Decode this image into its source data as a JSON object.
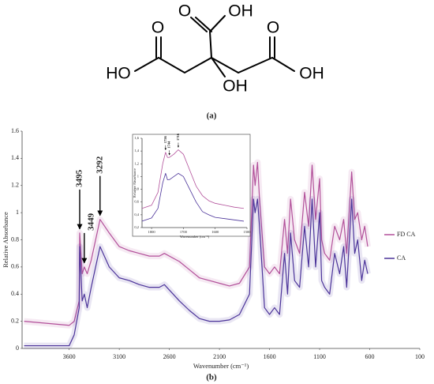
{
  "structure": {
    "labels": [
      "O",
      "OH",
      "O",
      "HO",
      "OH",
      "O",
      "OH"
    ],
    "caption": "(a)"
  },
  "chart_data": [
    {
      "type": "line",
      "caption": "(b)",
      "x_label": "Wavenumber (cm⁻¹)",
      "y_label": "Relative Absorbance",
      "xlim": [
        4070,
        100
      ],
      "xticks": [
        3600,
        3100,
        2600,
        2100,
        1600,
        1100,
        600,
        100
      ],
      "ylim": [
        0,
        1.6
      ],
      "yticks": [
        0,
        0.2,
        0.4,
        0.6,
        0.8,
        1,
        1.2,
        1.4,
        1.6
      ],
      "legend": "right",
      "x": [
        4050,
        3600,
        3550,
        3500,
        3495,
        3470,
        3449,
        3420,
        3380,
        3292,
        3200,
        3100,
        3000,
        2900,
        2800,
        2700,
        2650,
        2500,
        2400,
        2300,
        2200,
        2100,
        2000,
        1900,
        1800,
        1760,
        1744,
        1720,
        1700,
        1650,
        1600,
        1550,
        1500,
        1450,
        1420,
        1390,
        1350,
        1300,
        1250,
        1210,
        1175,
        1140,
        1100,
        1080,
        1050,
        1000,
        950,
        900,
        860,
        830,
        780,
        750,
        720,
        680,
        650,
        620
      ],
      "series": [
        {
          "name": "FD CA",
          "color": "#b2509a",
          "values": [
            0.2,
            0.17,
            0.2,
            0.35,
            0.85,
            0.55,
            0.6,
            0.55,
            0.65,
            0.95,
            0.85,
            0.75,
            0.72,
            0.7,
            0.68,
            0.68,
            0.7,
            0.64,
            0.58,
            0.52,
            0.5,
            0.48,
            0.46,
            0.48,
            0.6,
            1.35,
            1.2,
            1.37,
            1.1,
            0.6,
            0.55,
            0.6,
            0.55,
            0.95,
            0.7,
            1.1,
            0.8,
            0.7,
            1.15,
            0.9,
            1.35,
            0.95,
            1.25,
            0.8,
            0.7,
            0.65,
            0.9,
            0.8,
            0.95,
            0.7,
            1.3,
            0.95,
            1.0,
            0.8,
            0.9,
            0.75
          ]
        },
        {
          "name": "CA",
          "color": "#4b3399",
          "values": [
            0.02,
            0.02,
            0.1,
            0.3,
            0.75,
            0.35,
            0.4,
            0.3,
            0.45,
            0.75,
            0.6,
            0.52,
            0.5,
            0.47,
            0.45,
            0.45,
            0.47,
            0.35,
            0.28,
            0.22,
            0.2,
            0.2,
            0.21,
            0.25,
            0.4,
            1.1,
            1.0,
            1.1,
            0.9,
            0.3,
            0.25,
            0.3,
            0.25,
            0.7,
            0.4,
            0.85,
            0.5,
            0.45,
            0.9,
            0.6,
            1.1,
            0.6,
            1.0,
            0.5,
            0.45,
            0.4,
            0.7,
            0.55,
            0.75,
            0.45,
            1.1,
            0.7,
            0.8,
            0.5,
            0.65,
            0.55
          ]
        }
      ],
      "annotations": [
        {
          "text": "3495",
          "x": 3495
        },
        {
          "text": "3449",
          "x": 3449
        },
        {
          "text": "3292",
          "x": 3292
        }
      ]
    },
    {
      "type": "line",
      "x_label": "Wavenumber (cm⁻¹)",
      "y_label": "Relative Absorbance",
      "xlim": [
        1830,
        1500
      ],
      "xticks": [
        1800,
        1700,
        1600,
        1500
      ],
      "ylim": [
        0.2,
        1.6
      ],
      "yticks": [
        {
          "value": 0.2,
          "label": "0,2"
        },
        {
          "value": 0.4,
          "label": "0,4"
        },
        {
          "value": 0.6,
          "label": "0,6"
        },
        {
          "value": 0.8,
          "label": "0,8"
        },
        1,
        {
          "value": 1.2,
          "label": "1,2"
        },
        {
          "value": 1.4,
          "label": "1,4"
        },
        {
          "value": 1.6,
          "label": "1,6"
        }
      ],
      "x": [
        1830,
        1800,
        1780,
        1765,
        1756,
        1750,
        1744,
        1730,
        1716,
        1700,
        1680,
        1660,
        1640,
        1620,
        1600,
        1570,
        1540,
        1510
      ],
      "series": [
        {
          "name": "FD CA",
          "color": "#b2509a",
          "values": [
            0.5,
            0.55,
            0.75,
            1.2,
            1.38,
            1.3,
            1.3,
            1.35,
            1.42,
            1.35,
            1.1,
            0.85,
            0.7,
            0.62,
            0.58,
            0.55,
            0.52,
            0.5
          ]
        },
        {
          "name": "CA",
          "color": "#4b3399",
          "values": [
            0.3,
            0.35,
            0.5,
            0.9,
            1.05,
            0.95,
            0.95,
            1.0,
            1.05,
            1.0,
            0.8,
            0.6,
            0.45,
            0.4,
            0.36,
            0.34,
            0.32,
            0.3
          ]
        }
      ],
      "annotations": [
        {
          "text": "1756",
          "x": 1756
        },
        {
          "text": "1744",
          "x": 1744
        },
        {
          "text": "1716",
          "x": 1716
        }
      ]
    }
  ]
}
